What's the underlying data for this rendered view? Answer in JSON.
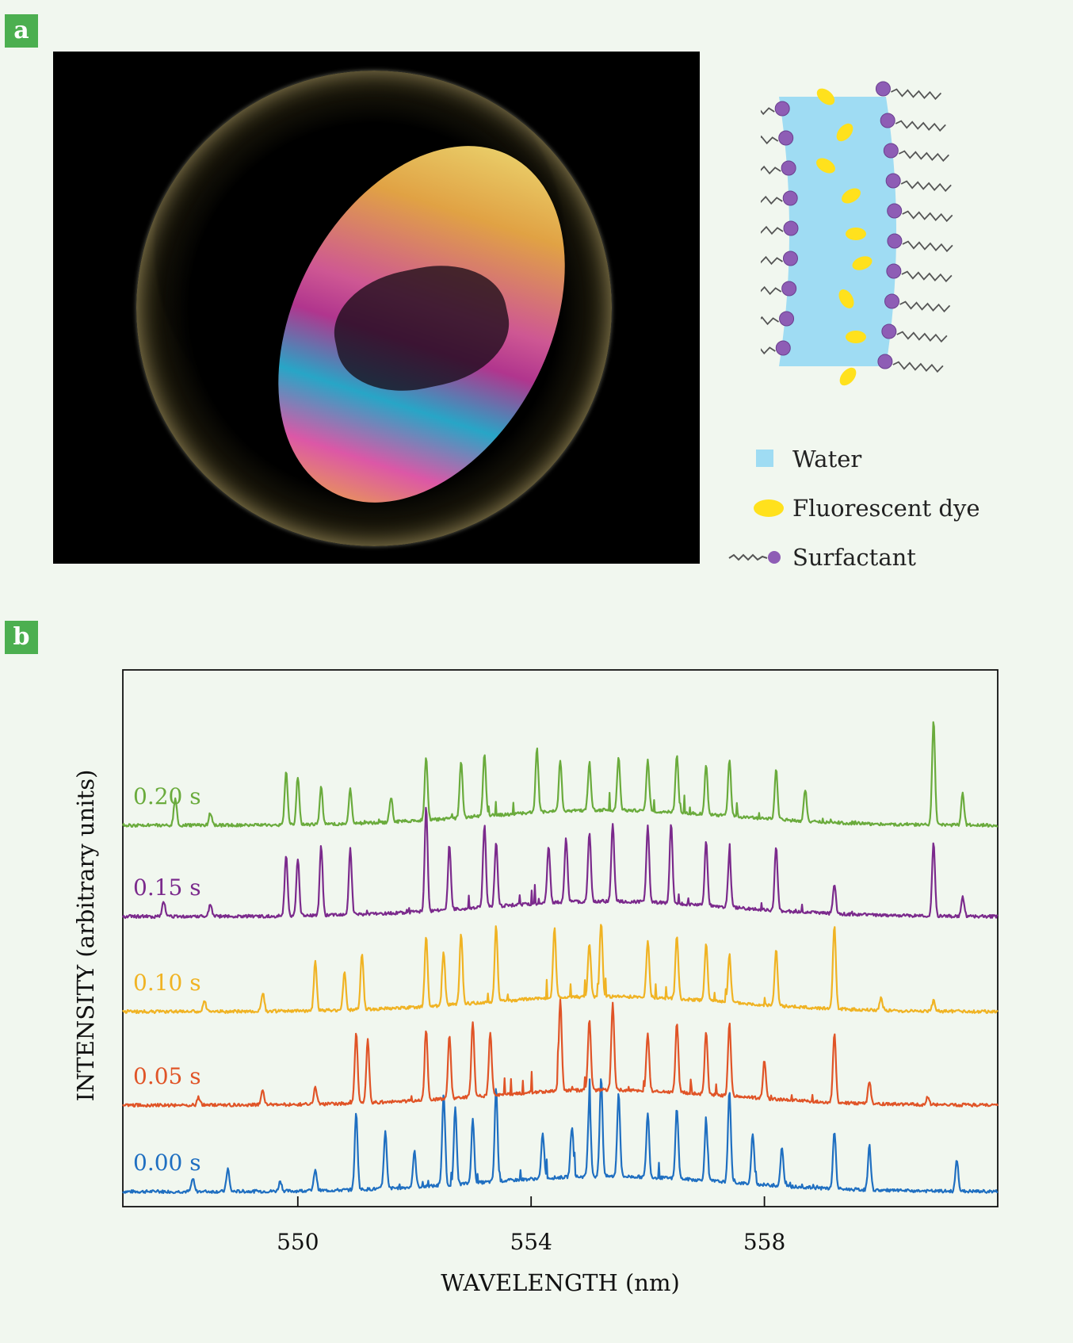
{
  "panels": {
    "a": "a",
    "b": "b"
  },
  "diagram_legend": [
    {
      "label": "Water",
      "icon": "water-swatch-icon",
      "color": "#9fdcf3"
    },
    {
      "label": "Fluorescent dye",
      "icon": "dye-ellipse-icon",
      "color": "#ffe11d"
    },
    {
      "label": "Surfactant",
      "icon": "surfactant-molecule-icon",
      "color": "#8e5db5"
    }
  ],
  "chart_data": {
    "type": "line",
    "xlabel": "WAVELENGTH (nm)",
    "ylabel": "INTENSITY (arbitrary units)",
    "xlim": [
      547,
      562
    ],
    "xticks": [
      550,
      554,
      558
    ],
    "tick_labels": [
      "550",
      "554",
      "558"
    ],
    "grid": false,
    "series": [
      {
        "name": "0.00 s",
        "color": "#1f6fc1",
        "offset": 0,
        "peaks": [
          [
            548.2,
            0.1
          ],
          [
            548.8,
            0.18
          ],
          [
            549.7,
            0.08
          ],
          [
            550.3,
            0.17
          ],
          [
            551.0,
            0.6
          ],
          [
            551.5,
            0.45
          ],
          [
            552.0,
            0.28
          ],
          [
            552.5,
            0.72
          ],
          [
            552.7,
            0.6
          ],
          [
            553.0,
            0.5
          ],
          [
            553.4,
            0.72
          ],
          [
            554.2,
            0.35
          ],
          [
            554.7,
            0.4
          ],
          [
            555.0,
            0.6
          ],
          [
            555.2,
            0.78
          ],
          [
            555.5,
            0.66
          ],
          [
            556.0,
            0.5
          ],
          [
            556.5,
            0.55
          ],
          [
            557.0,
            0.45
          ],
          [
            557.4,
            0.72
          ],
          [
            557.8,
            0.4
          ],
          [
            558.3,
            0.3
          ],
          [
            559.2,
            0.45
          ],
          [
            559.8,
            0.35
          ],
          [
            561.3,
            0.25
          ]
        ]
      },
      {
        "name": "0.05 s",
        "color": "#e05427",
        "offset": 1,
        "peaks": [
          [
            548.3,
            0.06
          ],
          [
            549.4,
            0.12
          ],
          [
            550.3,
            0.14
          ],
          [
            551.0,
            0.55
          ],
          [
            551.2,
            0.5
          ],
          [
            552.2,
            0.55
          ],
          [
            552.6,
            0.5
          ],
          [
            553.0,
            0.6
          ],
          [
            553.3,
            0.5
          ],
          [
            554.5,
            0.72
          ],
          [
            555.0,
            0.55
          ],
          [
            555.4,
            0.68
          ],
          [
            556.0,
            0.45
          ],
          [
            556.5,
            0.55
          ],
          [
            557.0,
            0.5
          ],
          [
            557.4,
            0.58
          ],
          [
            558.0,
            0.3
          ],
          [
            559.2,
            0.55
          ],
          [
            559.8,
            0.18
          ],
          [
            560.8,
            0.06
          ]
        ]
      },
      {
        "name": "0.10 s",
        "color": "#f0b323",
        "offset": 2,
        "peaks": [
          [
            548.4,
            0.08
          ],
          [
            549.4,
            0.15
          ],
          [
            550.3,
            0.4
          ],
          [
            550.8,
            0.3
          ],
          [
            551.1,
            0.45
          ],
          [
            552.2,
            0.55
          ],
          [
            552.5,
            0.42
          ],
          [
            552.8,
            0.55
          ],
          [
            553.4,
            0.6
          ],
          [
            554.4,
            0.55
          ],
          [
            555.0,
            0.42
          ],
          [
            555.2,
            0.58
          ],
          [
            556.0,
            0.45
          ],
          [
            556.5,
            0.5
          ],
          [
            557.0,
            0.45
          ],
          [
            557.4,
            0.38
          ],
          [
            558.2,
            0.45
          ],
          [
            559.2,
            0.65
          ],
          [
            560.0,
            0.1
          ],
          [
            560.9,
            0.08
          ]
        ]
      },
      {
        "name": "0.15 s",
        "color": "#7b2a8c",
        "offset": 3,
        "peaks": [
          [
            547.7,
            0.12
          ],
          [
            548.5,
            0.1
          ],
          [
            549.8,
            0.48
          ],
          [
            550.0,
            0.45
          ],
          [
            550.4,
            0.55
          ],
          [
            550.9,
            0.52
          ],
          [
            552.2,
            0.82
          ],
          [
            552.6,
            0.5
          ],
          [
            553.2,
            0.65
          ],
          [
            553.4,
            0.5
          ],
          [
            554.3,
            0.45
          ],
          [
            554.6,
            0.5
          ],
          [
            555.0,
            0.55
          ],
          [
            555.4,
            0.62
          ],
          [
            556.0,
            0.6
          ],
          [
            556.4,
            0.62
          ],
          [
            557.0,
            0.5
          ],
          [
            557.4,
            0.42
          ],
          [
            558.2,
            0.5
          ],
          [
            559.2,
            0.22
          ],
          [
            560.9,
            0.58
          ],
          [
            561.4,
            0.15
          ]
        ]
      },
      {
        "name": "0.20 s",
        "color": "#6aab3c",
        "offset": 4,
        "peaks": [
          [
            547.9,
            0.22
          ],
          [
            548.5,
            0.1
          ],
          [
            549.8,
            0.42
          ],
          [
            550.0,
            0.38
          ],
          [
            550.4,
            0.3
          ],
          [
            550.9,
            0.28
          ],
          [
            551.6,
            0.2
          ],
          [
            552.2,
            0.5
          ],
          [
            552.8,
            0.45
          ],
          [
            553.2,
            0.48
          ],
          [
            554.1,
            0.5
          ],
          [
            554.5,
            0.4
          ],
          [
            555.0,
            0.38
          ],
          [
            555.5,
            0.42
          ],
          [
            556.0,
            0.4
          ],
          [
            556.5,
            0.45
          ],
          [
            557.0,
            0.38
          ],
          [
            557.4,
            0.45
          ],
          [
            558.2,
            0.4
          ],
          [
            558.7,
            0.25
          ],
          [
            560.9,
            0.82
          ],
          [
            561.4,
            0.25
          ]
        ]
      }
    ]
  }
}
